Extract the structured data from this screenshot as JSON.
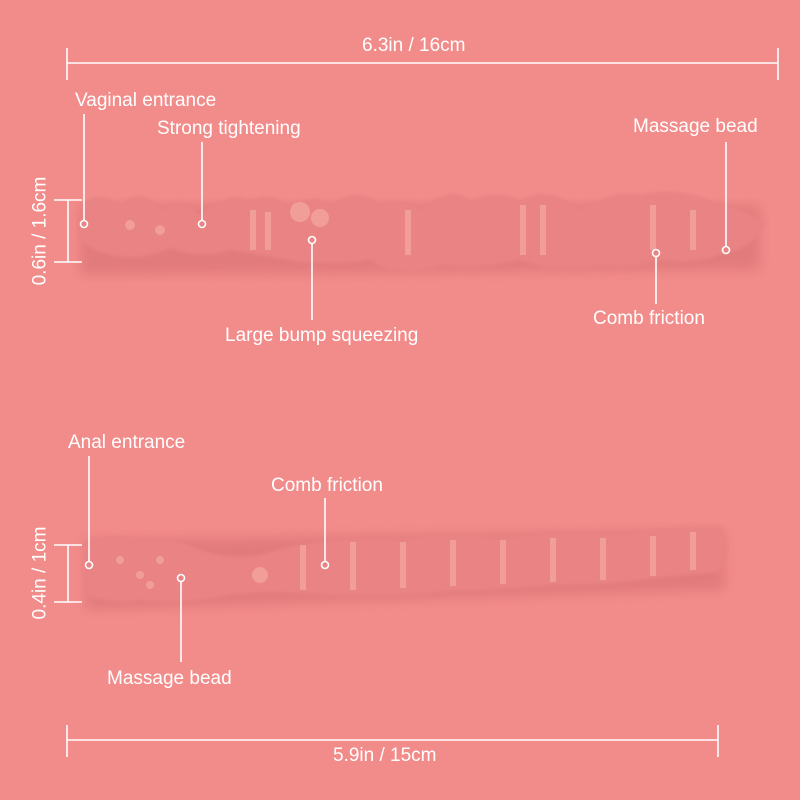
{
  "colors": {
    "background": "#f28c8a",
    "canal": "#e98384",
    "canal_shadow": "#d86f73",
    "canal_highlight": "#f7b0a8",
    "annotation": "#ffffff"
  },
  "top_canal": {
    "length_label": "6.3in / 16cm",
    "width_label": "0.6in / 1.6cm",
    "callouts": [
      "Vaginal entrance",
      "Strong tightening",
      "Massage bead",
      "Large bump squeezing",
      "Comb friction"
    ]
  },
  "bottom_canal": {
    "length_label": "5.9in / 15cm",
    "width_label": "0.4in / 1cm",
    "callouts": [
      "Anal entrance",
      "Comb friction",
      "Massage bead"
    ]
  }
}
